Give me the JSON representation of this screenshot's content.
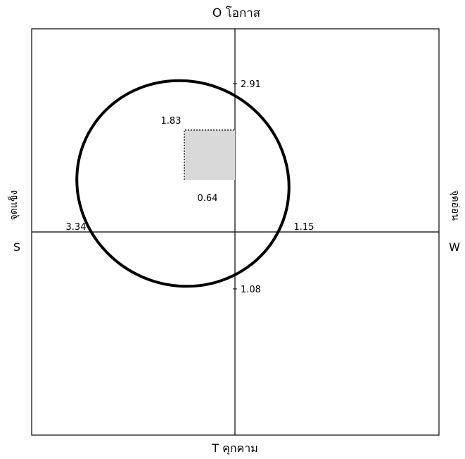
{
  "diagram": {
    "type": "swot-matrix",
    "axis_labels": {
      "top": "O โอกาส",
      "bottom": "T คุกคาม",
      "left_letter": "S",
      "left_word": "จุดแข็ง",
      "right_letter": "W",
      "right_word": "จุดอ่อน"
    },
    "values": {
      "opportunity": "2.91",
      "threat": "1.08",
      "strength": "3.34",
      "weakness": "1.15",
      "rect_x": "1.83",
      "rect_y": "0.64"
    }
  }
}
